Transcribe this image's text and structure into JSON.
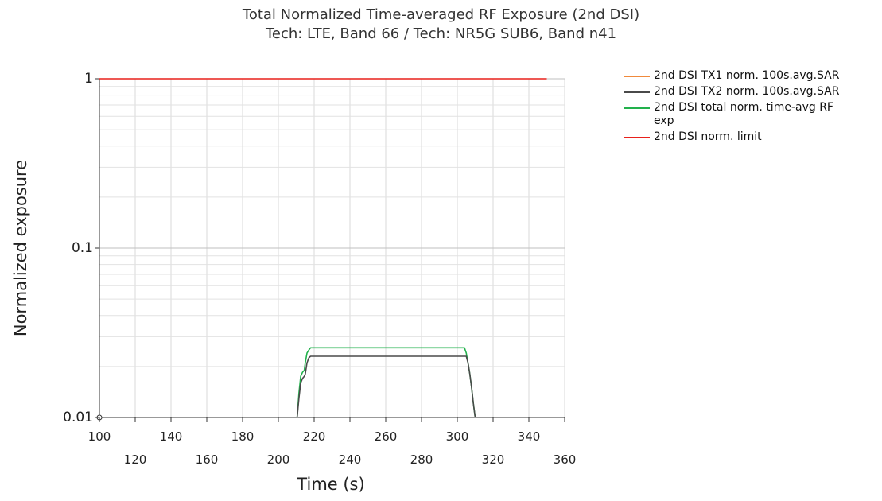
{
  "chart_data": {
    "type": "line",
    "title": "Total Normalized Time-averaged RF Exposure (2nd DSI)",
    "subtitle": "Tech: LTE, Band 66 / Tech: NR5G SUB6, Band n41",
    "xlabel": "Time (s)",
    "ylabel": "Normalized exposure",
    "xlim": [
      100,
      360
    ],
    "ylim": [
      0.01,
      1
    ],
    "yscale": "log",
    "grid": true,
    "legend_position": "right",
    "x_ticks_top": [
      "100",
      "140",
      "180",
      "220",
      "260",
      "300",
      "340"
    ],
    "x_ticks_bottom": [
      "120",
      "160",
      "200",
      "240",
      "280",
      "320",
      "360"
    ],
    "y_ticks": [
      "0.01",
      "0.1",
      "1"
    ],
    "series": [
      {
        "name": "2nd DSI TX1 norm. 100s.avg.SAR",
        "color": "#f08a3c",
        "x": [],
        "y": []
      },
      {
        "name": "2nd DSI TX2 norm. 100s.avg.SAR",
        "color": "#4a4a4a",
        "x": [
          210.5,
          211.5,
          212.5,
          213.5,
          214.5,
          215,
          216,
          217,
          218,
          300,
          305,
          306,
          307,
          308,
          309,
          310
        ],
        "y": [
          0.01,
          0.013,
          0.016,
          0.017,
          0.0175,
          0.018,
          0.021,
          0.0225,
          0.023,
          0.023,
          0.023,
          0.021,
          0.018,
          0.015,
          0.012,
          0.01
        ]
      },
      {
        "name": "2nd DSI total norm. time-avg RF exp",
        "color": "#22b14c",
        "x": [
          210.5,
          211.5,
          212.5,
          213.5,
          214.5,
          215,
          216,
          217,
          218,
          300,
          304,
          305,
          306,
          307,
          308,
          309,
          310
        ],
        "y": [
          0.01,
          0.014,
          0.0175,
          0.0185,
          0.019,
          0.021,
          0.024,
          0.025,
          0.0258,
          0.0258,
          0.0258,
          0.024,
          0.021,
          0.018,
          0.015,
          0.012,
          0.01
        ]
      },
      {
        "name": "2nd DSI norm. limit",
        "color": "#e8211c",
        "x": [
          100,
          350
        ],
        "y": [
          1,
          1
        ]
      }
    ]
  }
}
